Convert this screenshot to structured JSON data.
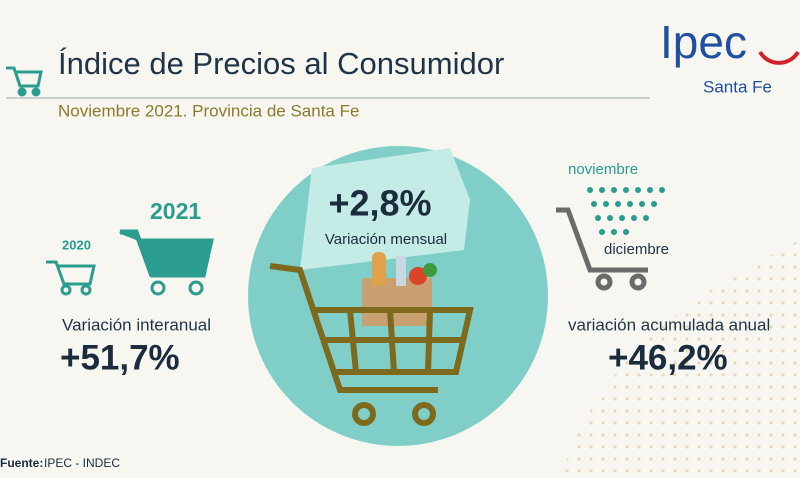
{
  "header": {
    "title": "Índice de Precios al Consumidor",
    "subtitle": "Noviembre 2021. Provincia de Santa Fe"
  },
  "logo": {
    "name": "Ipec",
    "place": "Santa Fe"
  },
  "interannual": {
    "year_big": "2021",
    "year_small": "2020",
    "label": "Variación interanual",
    "value": "+51,7%"
  },
  "monthly": {
    "value": "+2,8%",
    "label": "Variación mensual"
  },
  "cumulative": {
    "from": "noviembre",
    "to": "diciembre",
    "label": "variación acumulada anual",
    "value": "+46,2%"
  },
  "footer": {
    "label": "Fuente:",
    "source": "IPEC - INDEC"
  }
}
